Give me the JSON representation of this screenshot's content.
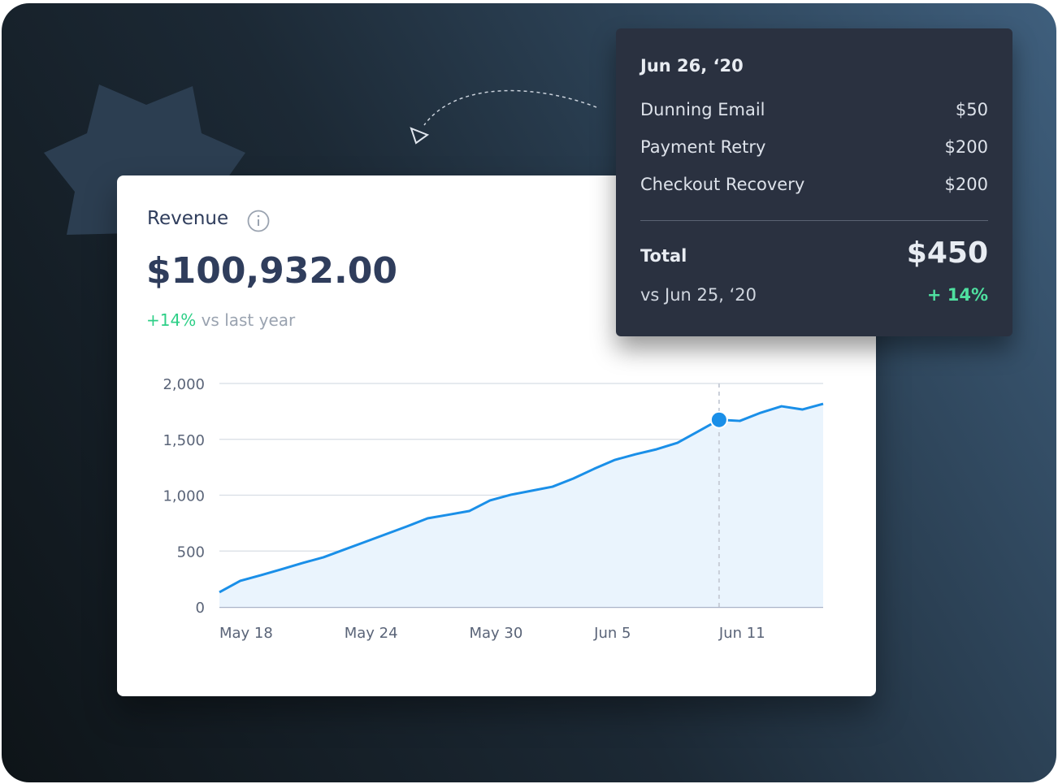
{
  "card": {
    "title": "Revenue",
    "amount": "$100,932.00",
    "change": "+14%",
    "change_label": "vs last year"
  },
  "tooltip": {
    "date": "Jun 26, ‘20",
    "rows": [
      {
        "label": "Dunning Email",
        "value": "$50"
      },
      {
        "label": "Payment Retry",
        "value": "$200"
      },
      {
        "label": "Checkout Recovery",
        "value": "$200"
      }
    ],
    "total_label": "Total",
    "total": "$450",
    "compare": "vs Jun 25, ‘20",
    "compare_change": "+ 14%"
  },
  "chart_data": {
    "type": "line",
    "categories": [
      "May 18",
      null,
      null,
      null,
      null,
      null,
      "May 24",
      null,
      null,
      null,
      null,
      null,
      "May 30",
      null,
      null,
      null,
      null,
      null,
      "Jun 5",
      null,
      null,
      null,
      null,
      null,
      "Jun 11",
      null,
      null,
      null,
      null,
      null
    ],
    "values": [
      131,
      233,
      284,
      338,
      393,
      444,
      513,
      582,
      651,
      720,
      793,
      825,
      858,
      953,
      1004,
      1040,
      1076,
      1149,
      1236,
      1316,
      1367,
      1411,
      1469,
      1571,
      1675,
      1665,
      1738,
      1796,
      1767,
      1818
    ],
    "color": "#1a8fe8",
    "ylim": [
      0,
      2000
    ],
    "yticks": [
      0,
      500,
      {
        "value": 1000,
        "label": "1,000"
      },
      {
        "value": 1500,
        "label": "1,500"
      },
      {
        "value": 2000,
        "label": "2,000"
      }
    ],
    "grid": true,
    "highlight_index": 24
  }
}
